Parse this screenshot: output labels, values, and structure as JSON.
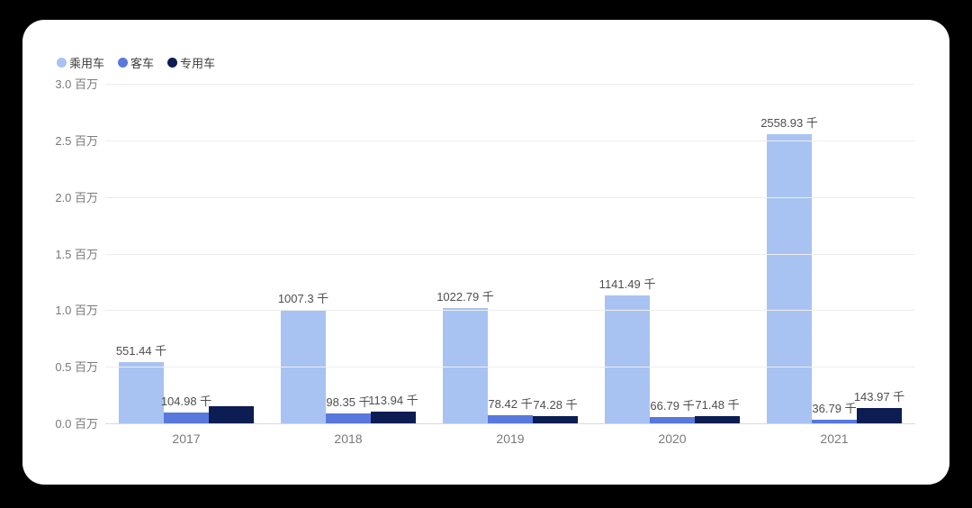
{
  "canvas": {
    "background_color": "#000000",
    "card_color": "#ffffff"
  },
  "chart_data": {
    "type": "bar",
    "title": "",
    "xlabel": "",
    "ylabel": "",
    "values_unit": "千 (thousands)",
    "axis_unit": "百万 (millions)",
    "categories": [
      "2017",
      "2018",
      "2019",
      "2020",
      "2021"
    ],
    "series": [
      {
        "name": "乘用车",
        "key": "passenger-car",
        "color": "#a8c3f2",
        "values": [
          551.44,
          1007.3,
          1022.79,
          1141.49,
          2558.93
        ],
        "labels": [
          "551.44 千",
          "1007.3 千",
          "1022.79 千",
          "1141.49 千",
          "2558.93 千"
        ]
      },
      {
        "name": "客车",
        "key": "bus",
        "color": "#5878dc",
        "values": [
          104.98,
          98.35,
          78.42,
          66.79,
          36.79
        ],
        "labels": [
          "104.98 千",
          "98.35 千",
          "78.42 千",
          "66.79 千",
          "36.79 千"
        ]
      },
      {
        "name": "专用车",
        "key": "special-vehicle",
        "color": "#0b1d52",
        "values": [
          160,
          113.94,
          74.28,
          71.48,
          143.97
        ],
        "labels": [
          null,
          "113.94 千",
          "74.28 千",
          "71.48 千",
          "143.97 千"
        ]
      }
    ],
    "y_ticks": [
      "0.0 百万",
      "0.5 百万",
      "1.0 百万",
      "1.5 百万",
      "2.0 百万",
      "2.5 百万",
      "3.0 百万"
    ],
    "ylim": [
      0,
      3.0
    ],
    "y_max_thousands": 3000,
    "grid": true,
    "legend_position": "top-left"
  }
}
